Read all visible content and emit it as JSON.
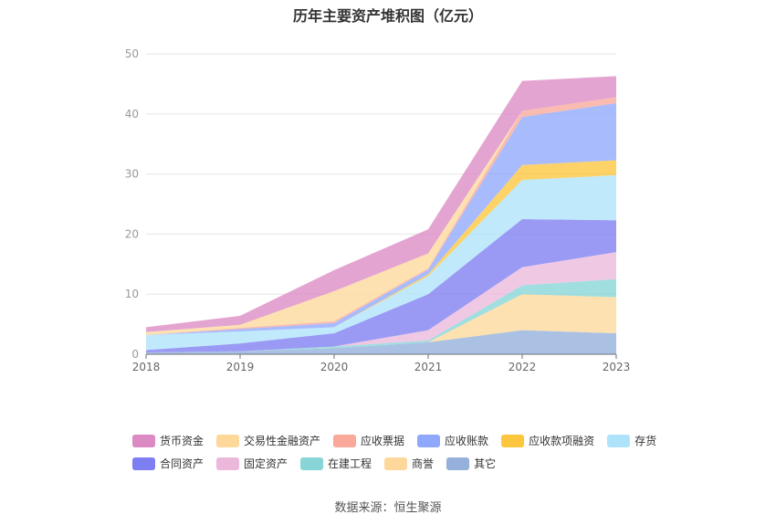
{
  "title": "历年主要资产堆积图（亿元）",
  "source": "数据来源：恒生聚源",
  "chart_data": {
    "type": "area",
    "stacked": true,
    "title": "历年主要资产堆积图（亿元）",
    "x": [
      "2018",
      "2019",
      "2020",
      "2021",
      "2022",
      "2023"
    ],
    "ylim": [
      0,
      50
    ],
    "yticks": [
      "0",
      "10",
      "20",
      "30",
      "40",
      "50"
    ],
    "grid": true,
    "legend_position": "bottom",
    "series": [
      {
        "name": "其它",
        "color": "#94b0db",
        "values": [
          0.3,
          0.5,
          1.0,
          2.0,
          4.0,
          3.5
        ]
      },
      {
        "name": "商誉",
        "color": "#fdd89a",
        "values": [
          0.0,
          0.0,
          0.0,
          0.0,
          6.0,
          6.0
        ]
      },
      {
        "name": "在建工程",
        "color": "#87d5d6",
        "values": [
          0.0,
          0.0,
          0.3,
          0.3,
          1.5,
          3.0
        ]
      },
      {
        "name": "固定资产",
        "color": "#ebb8dc",
        "values": [
          0.0,
          0.0,
          0.0,
          1.7,
          3.0,
          4.5
        ]
      },
      {
        "name": "合同资产",
        "color": "#7d7ef2",
        "values": [
          0.4,
          1.3,
          2.2,
          6.0,
          8.0,
          5.3
        ]
      },
      {
        "name": "存货",
        "color": "#aee3fb",
        "values": [
          2.5,
          2.0,
          1.0,
          3.0,
          6.5,
          7.5
        ]
      },
      {
        "name": "应收款项融资",
        "color": "#fcc63e",
        "values": [
          0.0,
          0.0,
          0.0,
          0.3,
          2.5,
          2.5
        ]
      },
      {
        "name": "应收账款",
        "color": "#8fa8fc",
        "values": [
          0.0,
          0.4,
          0.7,
          0.8,
          8.0,
          9.5
        ]
      },
      {
        "name": "应收票据",
        "color": "#f9a89a",
        "values": [
          0.0,
          0.2,
          0.3,
          0.2,
          1.0,
          1.0
        ]
      },
      {
        "name": "交易性金融资产",
        "color": "#fdd89a",
        "values": [
          0.5,
          0.5,
          5.0,
          2.5,
          0.0,
          0.0
        ]
      },
      {
        "name": "货币资金",
        "color": "#dc8ac4",
        "values": [
          0.8,
          1.5,
          3.5,
          4.0,
          5.0,
          3.5
        ]
      }
    ],
    "legend_order": [
      "货币资金",
      "交易性金融资产",
      "应收票据",
      "应收账款",
      "应收款项融资",
      "存货",
      "合同资产",
      "固定资产",
      "在建工程",
      "商誉",
      "其它"
    ]
  }
}
